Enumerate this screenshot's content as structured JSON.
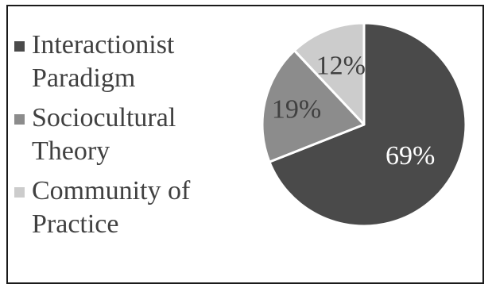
{
  "chart_data": {
    "type": "pie",
    "title": "",
    "categories": [
      "Interactionist Paradigm",
      "Sociocultural Theory",
      "Community of Practice"
    ],
    "values": [
      69,
      19,
      12
    ],
    "unit": "%",
    "data_labels": [
      "69%",
      "19%",
      "12%"
    ],
    "legend": {
      "placement": "left",
      "entries": [
        "Interactionist\nParadigm",
        "Sociocultural\nTheory",
        "Community of\nPractice"
      ]
    },
    "colors": [
      "#4a4a4a",
      "#8c8c8c",
      "#cccccc"
    ],
    "label_colors": [
      "#ffffff",
      "#404040",
      "#404040"
    ],
    "start_angle_deg": 0,
    "direction": "clockwise"
  }
}
